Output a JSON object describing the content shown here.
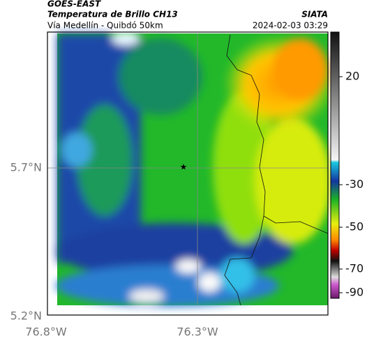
{
  "header": {
    "title": "GOES-EAST",
    "subtitle": "Temperatura de Brillo CH13",
    "source": "SIATA",
    "region": "Vía Medellín - Quibdó 50km",
    "datetime": "2024-02-03 03:29"
  },
  "map": {
    "lat_labels": [
      "5.7°N",
      "5.2°N"
    ],
    "lon_labels": [
      "76.8°W",
      "76.3°W"
    ]
  },
  "colorbar": {
    "tick_labels": [
      "20",
      "-30",
      "-50",
      "-70",
      "-90"
    ]
  }
}
